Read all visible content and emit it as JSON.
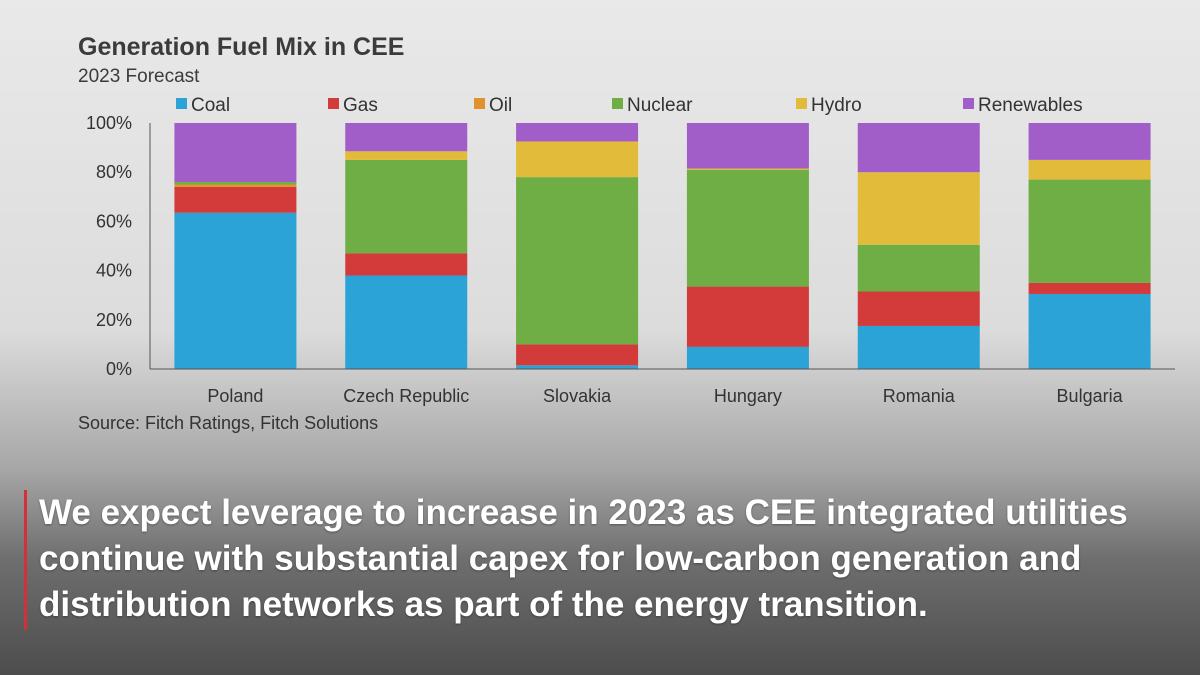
{
  "chart_data": {
    "type": "bar",
    "stacked": true,
    "title": "Generation Fuel Mix in CEE",
    "subtitle": "2023 Forecast",
    "source": "Source: Fitch Ratings, Fitch Solutions",
    "categories": [
      "Poland",
      "Czech Republic",
      "Slovakia",
      "Hungary",
      "Romania",
      "Bulgaria"
    ],
    "ylim": [
      0,
      100
    ],
    "yticks": [
      0,
      20,
      40,
      60,
      80,
      100
    ],
    "ytick_labels": [
      "0%",
      "20%",
      "40%",
      "60%",
      "80%",
      "100%"
    ],
    "legend_position": "top",
    "grid": false,
    "series": [
      {
        "name": "Coal",
        "color": "#2ba3d6",
        "values": [
          63.5,
          38,
          1.5,
          9,
          17.5,
          30.5
        ]
      },
      {
        "name": "Gas",
        "color": "#d33b3b",
        "values": [
          10.5,
          9,
          8.5,
          24.5,
          14,
          4.5
        ]
      },
      {
        "name": "Oil",
        "color": "#e0932c",
        "values": [
          1,
          0,
          0,
          0,
          0,
          0
        ]
      },
      {
        "name": "Nuclear",
        "color": "#6fad45",
        "values": [
          1,
          38,
          68,
          47.5,
          19,
          42
        ]
      },
      {
        "name": "Hydro",
        "color": "#e2bb3b",
        "values": [
          0,
          3.5,
          14.5,
          0.5,
          29.5,
          8
        ]
      },
      {
        "name": "Renewables",
        "color": "#a25ec8",
        "values": [
          24,
          11.5,
          7.5,
          18.5,
          20,
          15
        ]
      }
    ]
  },
  "caption": "We expect leverage to increase in 2023 as CEE integrated utilities continue with substantial capex for low-carbon generation and distribution networks as part of the energy transition."
}
